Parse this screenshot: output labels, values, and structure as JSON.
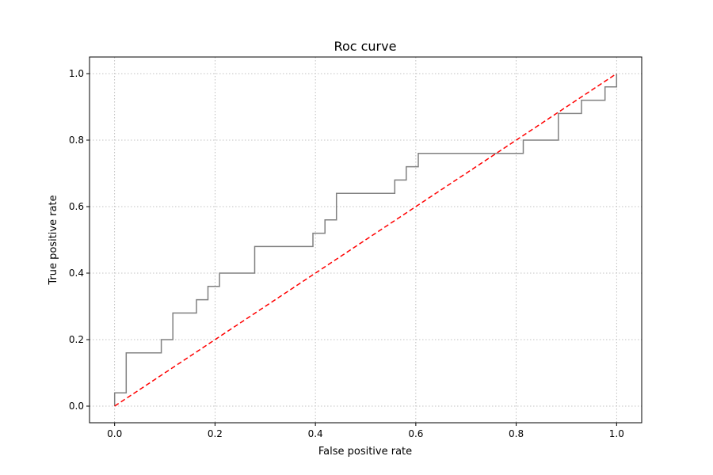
{
  "chart_data": {
    "type": "line",
    "title": "Roc curve",
    "xlabel": "False positive rate",
    "ylabel": "True positive rate",
    "xlim": [
      -0.05,
      1.05
    ],
    "ylim": [
      -0.05,
      1.05
    ],
    "xticks": [
      0.0,
      0.2,
      0.4,
      0.6,
      0.8,
      1.0
    ],
    "yticks": [
      0.0,
      0.2,
      0.4,
      0.6,
      0.8,
      1.0
    ],
    "xtick_labels": [
      "0.0",
      "0.2",
      "0.4",
      "0.6",
      "0.8",
      "1.0"
    ],
    "ytick_labels": [
      "0.0",
      "0.2",
      "0.4",
      "0.6",
      "0.8",
      "1.0"
    ],
    "grid": true,
    "grid_style": "dotted",
    "series": [
      {
        "style": "step",
        "color": "#808080",
        "x": [
          0.0,
          0.0,
          0.023,
          0.023,
          0.093,
          0.093,
          0.116,
          0.116,
          0.163,
          0.163,
          0.186,
          0.186,
          0.209,
          0.209,
          0.279,
          0.279,
          0.395,
          0.395,
          0.419,
          0.419,
          0.442,
          0.442,
          0.558,
          0.558,
          0.581,
          0.581,
          0.605,
          0.605,
          0.814,
          0.814,
          0.884,
          0.884,
          0.93,
          0.93,
          0.977,
          0.977,
          1.0,
          1.0
        ],
        "y": [
          0.0,
          0.04,
          0.04,
          0.16,
          0.16,
          0.2,
          0.2,
          0.28,
          0.28,
          0.32,
          0.32,
          0.36,
          0.36,
          0.4,
          0.4,
          0.48,
          0.48,
          0.52,
          0.52,
          0.56,
          0.56,
          0.64,
          0.64,
          0.68,
          0.68,
          0.72,
          0.72,
          0.76,
          0.76,
          0.8,
          0.8,
          0.88,
          0.88,
          0.92,
          0.92,
          0.96,
          0.96,
          1.0
        ]
      },
      {
        "style": "dashed",
        "color": "#ff0000",
        "x": [
          0.0,
          1.0
        ],
        "y": [
          0.0,
          1.0
        ]
      }
    ]
  }
}
